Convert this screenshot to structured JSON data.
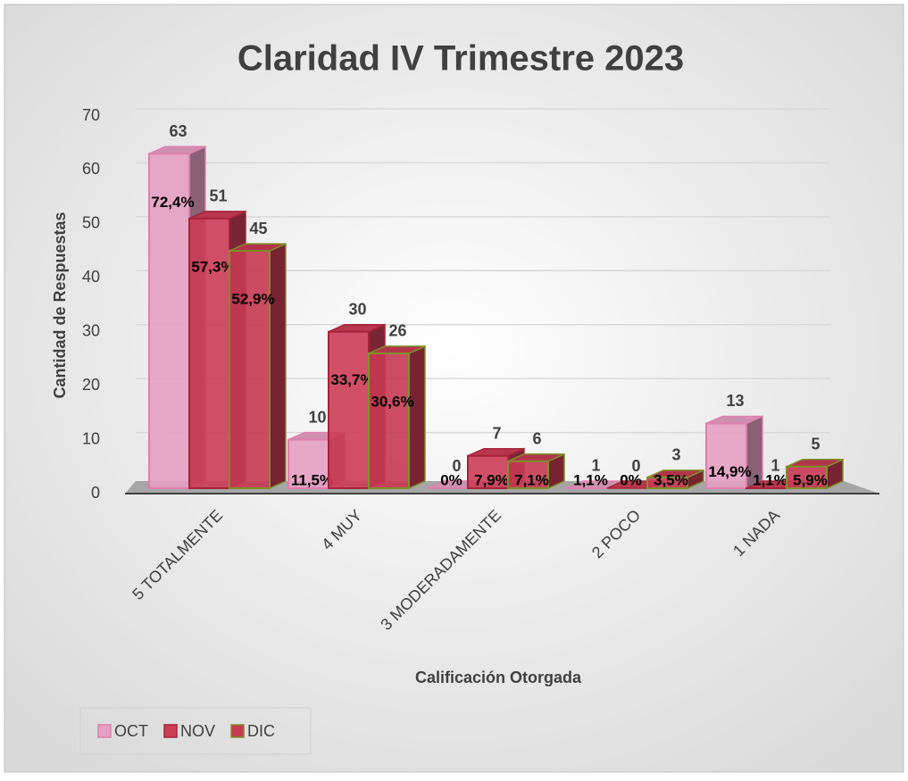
{
  "chart_data": {
    "type": "bar3d",
    "title": "Claridad IV Trimestre 2023",
    "x_label": "Calificación Otorgada",
    "y_label": "Cantidad de Respuestas",
    "categories": [
      "5 TOTALMENTE",
      "4 MUY",
      "3 MODERADAMENTE",
      "2 POCO",
      "1 NADA"
    ],
    "series": [
      {
        "name": "OCT",
        "color": "#e6a0c3",
        "edge": "#e07fae",
        "values": [
          63,
          10,
          0,
          1,
          13
        ],
        "percent_labels": [
          "72,4%",
          "11,5%",
          "0%",
          "1,1%",
          "14,9%"
        ]
      },
      {
        "name": "NOV",
        "color": "#cc3d56",
        "edge": "#a8233a",
        "values": [
          51,
          30,
          7,
          0,
          1
        ],
        "percent_labels": [
          "57,3%",
          "33,7%",
          "7,9%",
          "0%",
          "1,1%"
        ]
      },
      {
        "name": "DIC",
        "color": "#c63a52",
        "edge": "#7f8f2a",
        "values": [
          45,
          26,
          6,
          3,
          5
        ],
        "percent_labels": [
          "52,9%",
          "30,6%",
          "7,1%",
          "3,5%",
          "5,9%"
        ]
      }
    ],
    "ylim": [
      0,
      70
    ],
    "yticks": [
      0,
      10,
      20,
      30,
      40,
      50,
      60,
      70
    ],
    "grid": true,
    "legend": "bottom-left"
  }
}
